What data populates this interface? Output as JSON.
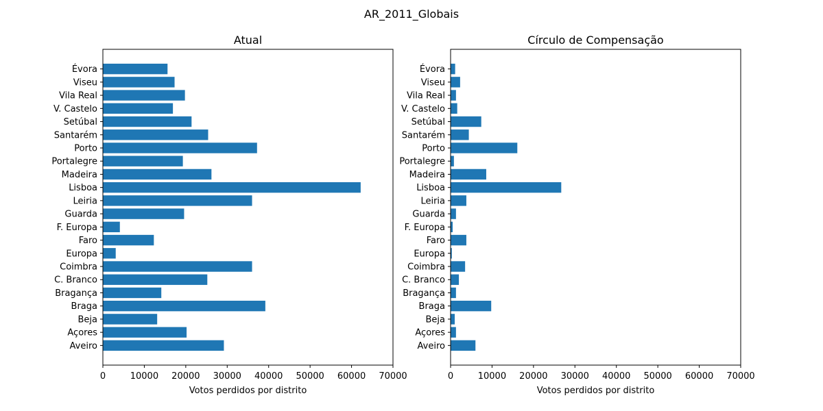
{
  "figure": {
    "title": "AR_2011_Globais"
  },
  "chart_data": [
    {
      "type": "bar",
      "orientation": "horizontal",
      "title": "Atual",
      "xlabel": "Votos perdidos por distrito",
      "ylabel": "",
      "xlim": [
        0,
        70000
      ],
      "xticks": [
        "0",
        "10000",
        "20000",
        "30000",
        "40000",
        "50000",
        "60000",
        "70000"
      ],
      "bar_color": "#1f77b4",
      "categories": [
        "Aveiro",
        "Açores",
        "Beja",
        "Braga",
        "Bragança",
        "C. Branco",
        "Coimbra",
        "Europa",
        "Faro",
        "F. Europa",
        "Guarda",
        "Leiria",
        "Lisboa",
        "Madeira",
        "Portalegre",
        "Porto",
        "Santarém",
        "Setúbal",
        "V. Castelo",
        "Vila Real",
        "Viseu",
        "Évora"
      ],
      "values": [
        29200,
        20200,
        13100,
        39200,
        14100,
        25200,
        36000,
        3100,
        12300,
        4100,
        19600,
        36000,
        62200,
        26200,
        19300,
        37200,
        25400,
        21400,
        16900,
        19800,
        17300,
        15600
      ]
    },
    {
      "type": "bar",
      "orientation": "horizontal",
      "title": "Círculo de Compensação",
      "xlabel": "Votos perdidos por distrito",
      "ylabel": "",
      "xlim": [
        0,
        70000
      ],
      "xticks": [
        "0",
        "10000",
        "20000",
        "30000",
        "40000",
        "50000",
        "60000",
        "70000"
      ],
      "bar_color": "#1f77b4",
      "categories": [
        "Aveiro",
        "Açores",
        "Beja",
        "Braga",
        "Bragança",
        "C. Branco",
        "Coimbra",
        "Europa",
        "Faro",
        "F. Europa",
        "Guarda",
        "Leiria",
        "Lisboa",
        "Madeira",
        "Portalegre",
        "Porto",
        "Santarém",
        "Setúbal",
        "V. Castelo",
        "Vila Real",
        "Viseu",
        "Évora"
      ],
      "values": [
        6000,
        1300,
        1000,
        9800,
        1300,
        2000,
        3500,
        300,
        3800,
        500,
        1300,
        3800,
        26700,
        8600,
        800,
        16100,
        4400,
        7400,
        1600,
        1300,
        2300,
        1100
      ]
    }
  ]
}
